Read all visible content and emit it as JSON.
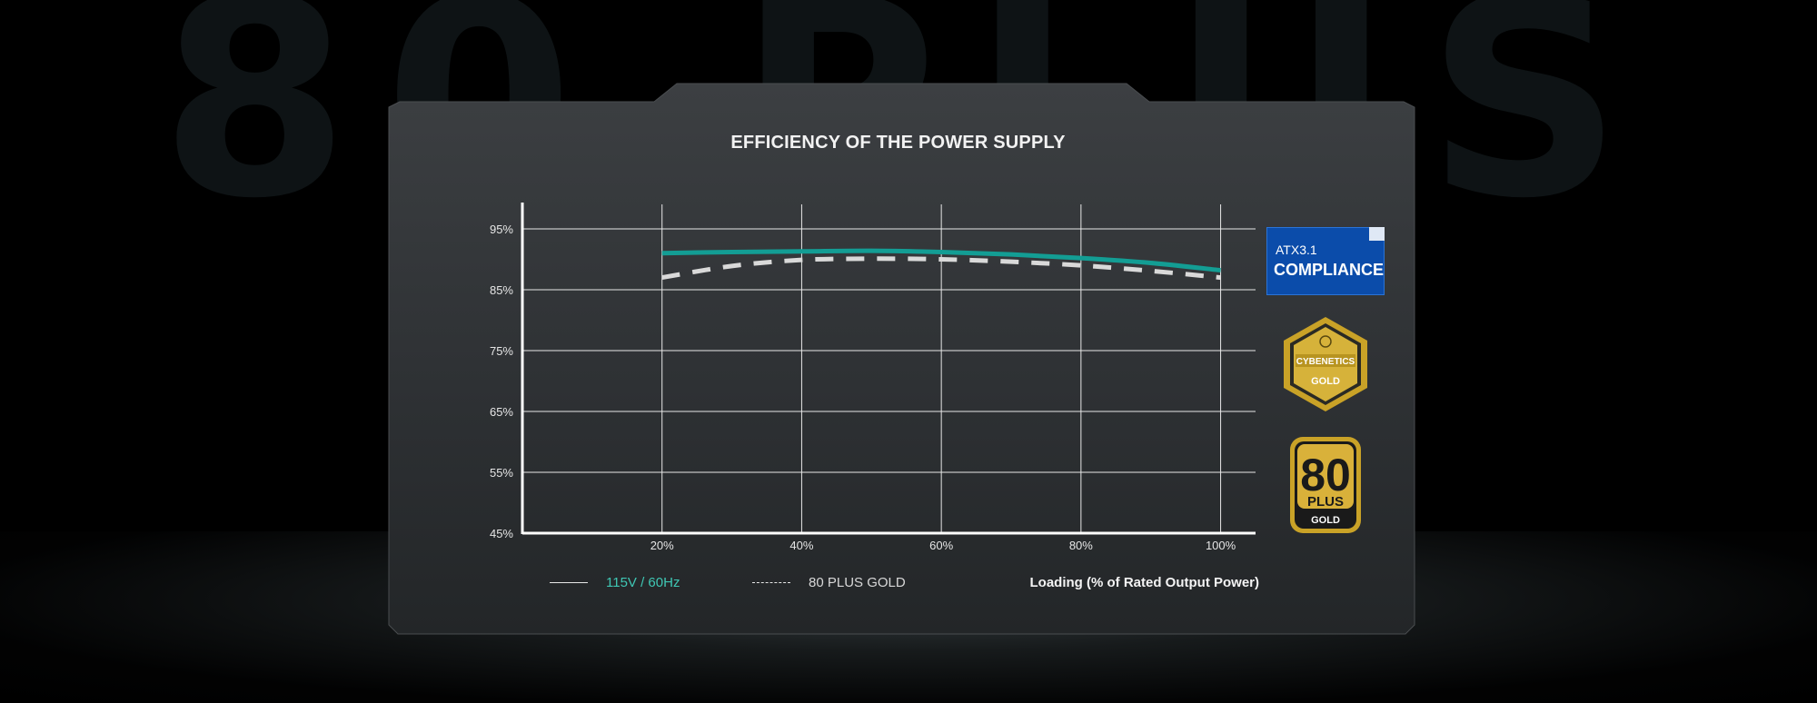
{
  "background": {
    "watermark_text": "80 PLUS"
  },
  "colors": {
    "series_115v": "#139d94",
    "series_80plus": "#d9d9d9",
    "legend_115v_text": "#3fc7b4",
    "atx_badge": "#0a4fae",
    "gold": "#c9a227"
  },
  "chart_data": {
    "type": "line",
    "title": "EFFICIENCY OF THE POWER SUPPLY",
    "xlabel": "Loading (% of Rated Output Power)",
    "ylabel": "",
    "x": [
      20,
      30,
      40,
      50,
      60,
      70,
      80,
      90,
      100
    ],
    "x_ticks": [
      "20%",
      "40%",
      "60%",
      "80%",
      "100%"
    ],
    "y_ticks": [
      "95%",
      "85%",
      "75%",
      "65%",
      "55%",
      "45%"
    ],
    "xlim": [
      0,
      105
    ],
    "ylim": [
      45,
      95
    ],
    "grid": true,
    "legend_position": "bottom-left",
    "series": [
      {
        "name": "115V / 60Hz",
        "style": "solid",
        "values": [
          91.0,
          91.2,
          91.3,
          91.4,
          91.2,
          90.8,
          90.2,
          89.4,
          88.2
        ]
      },
      {
        "name": "80 PLUS GOLD",
        "style": "dashed",
        "values": [
          87.0,
          88.9,
          89.9,
          90.1,
          90.0,
          89.6,
          89.0,
          88.1,
          87.0
        ]
      }
    ]
  },
  "badges": {
    "atx": {
      "line1": "ATX3.1",
      "line2": "COMPLIANCE"
    },
    "cybenetics": {
      "line1": "CYBENETICS",
      "line2": "GOLD"
    },
    "eighty_plus": {
      "number": "80",
      "word": "PLUS",
      "tier": "GOLD"
    }
  }
}
